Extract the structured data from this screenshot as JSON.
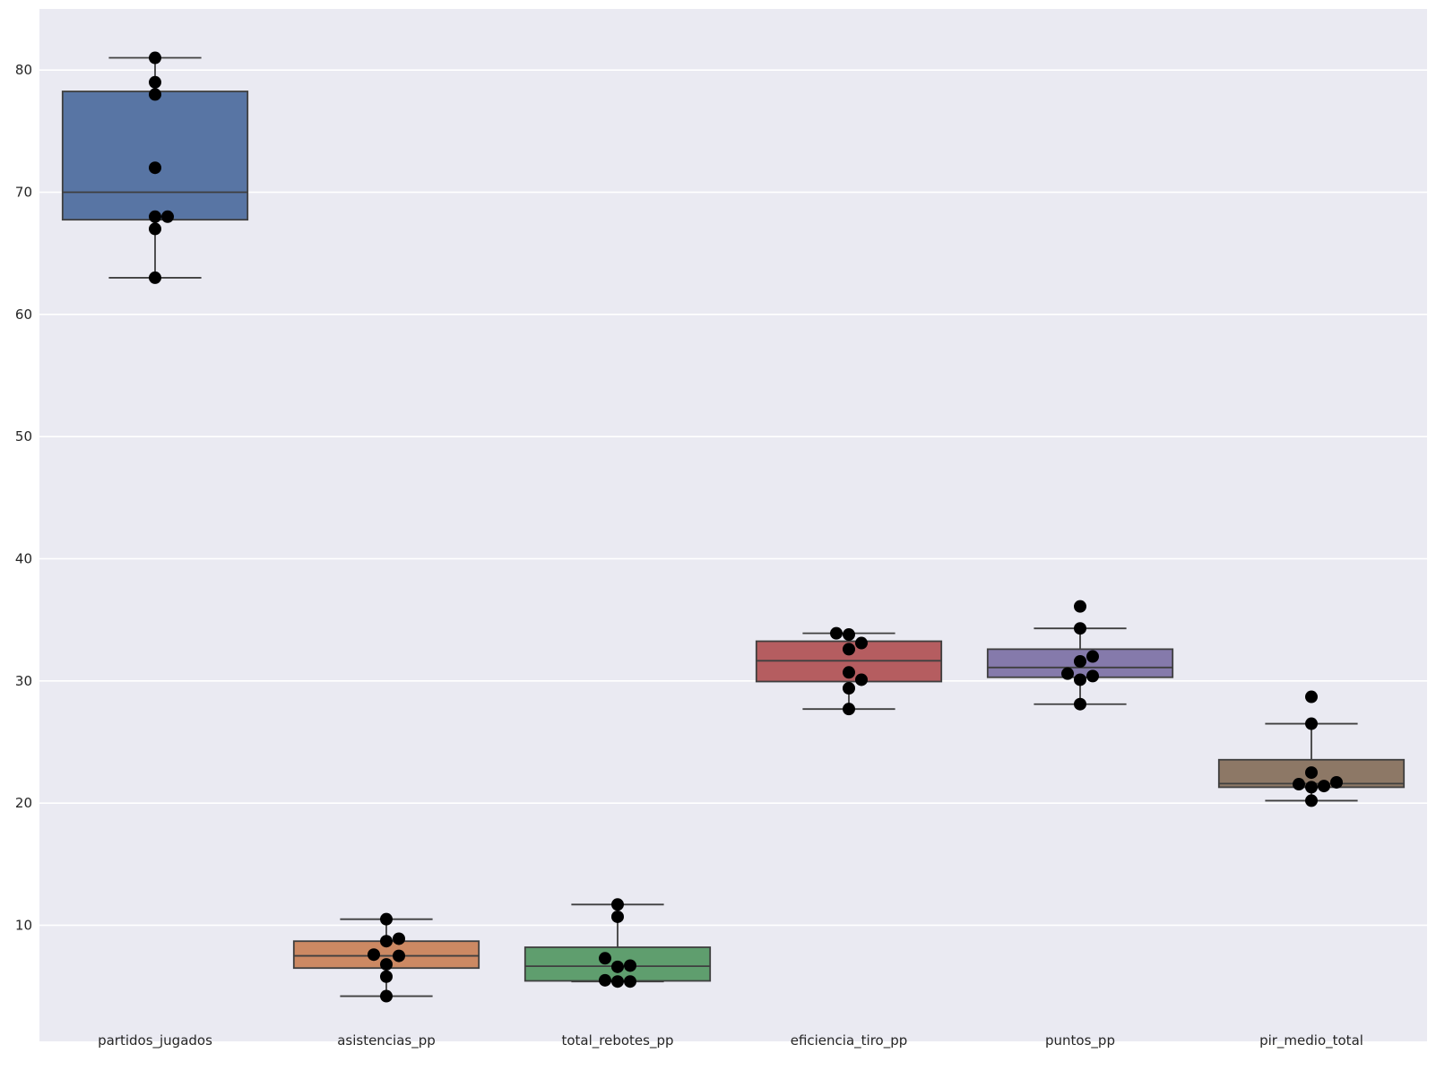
{
  "chart_data": {
    "type": "box",
    "overlay": "swarm",
    "categories": [
      "partidos_jugados",
      "asistencias_pp",
      "total_rebotes_pp",
      "eficiencia_tiro_pp",
      "puntos_pp",
      "pir_medio_total"
    ],
    "ylim": [
      0.5,
      85
    ],
    "yticks": [
      10,
      20,
      30,
      40,
      50,
      60,
      70,
      80
    ],
    "grid": true,
    "colors": {
      "background": "#eaeaf2",
      "grid": "#ffffff",
      "box_edge": "#3f3f3f",
      "points": "#000000",
      "fills": [
        "#5875a4",
        "#cc8963",
        "#5f9e6e",
        "#b55d60",
        "#857aab",
        "#8d7866"
      ]
    },
    "boxes": [
      {
        "name": "partidos_jugados",
        "whisker_low": 63,
        "q1": 67.75,
        "median": 70,
        "q3": 78.25,
        "whisker_high": 81,
        "points": [
          63,
          67,
          68,
          68,
          72,
          78,
          79,
          81
        ]
      },
      {
        "name": "asistencias_pp",
        "whisker_low": 4.2,
        "q1": 6.5,
        "median": 7.5,
        "q3": 8.7,
        "whisker_high": 10.5,
        "points": [
          4.2,
          5.8,
          6.8,
          7.5,
          7.6,
          8.7,
          8.9,
          10.5
        ]
      },
      {
        "name": "total_rebotes_pp",
        "whisker_low": 5.4,
        "q1": 5.45,
        "median": 6.65,
        "q3": 8.2,
        "whisker_high": 11.7,
        "points": [
          5.4,
          5.4,
          5.5,
          6.6,
          6.7,
          7.3,
          10.7,
          11.7
        ]
      },
      {
        "name": "eficiencia_tiro_pp",
        "whisker_low": 27.7,
        "q1": 29.95,
        "median": 31.65,
        "q3": 33.25,
        "whisker_high": 33.9,
        "points": [
          27.7,
          29.4,
          30.1,
          30.7,
          32.6,
          33.1,
          33.8,
          33.9
        ]
      },
      {
        "name": "puntos_pp",
        "whisker_low": 28.1,
        "q1": 30.3,
        "median": 31.1,
        "q3": 32.6,
        "whisker_high": 34.3,
        "points": [
          28.1,
          30.1,
          30.4,
          30.6,
          31.6,
          32.0,
          34.3,
          36.1
        ]
      },
      {
        "name": "pir_medio_total",
        "whisker_low": 20.2,
        "q1": 21.3,
        "median": 21.6,
        "q3": 23.55,
        "whisker_high": 26.5,
        "points": [
          20.2,
          21.3,
          21.4,
          21.55,
          21.7,
          22.5,
          26.5,
          28.7
        ]
      }
    ]
  }
}
